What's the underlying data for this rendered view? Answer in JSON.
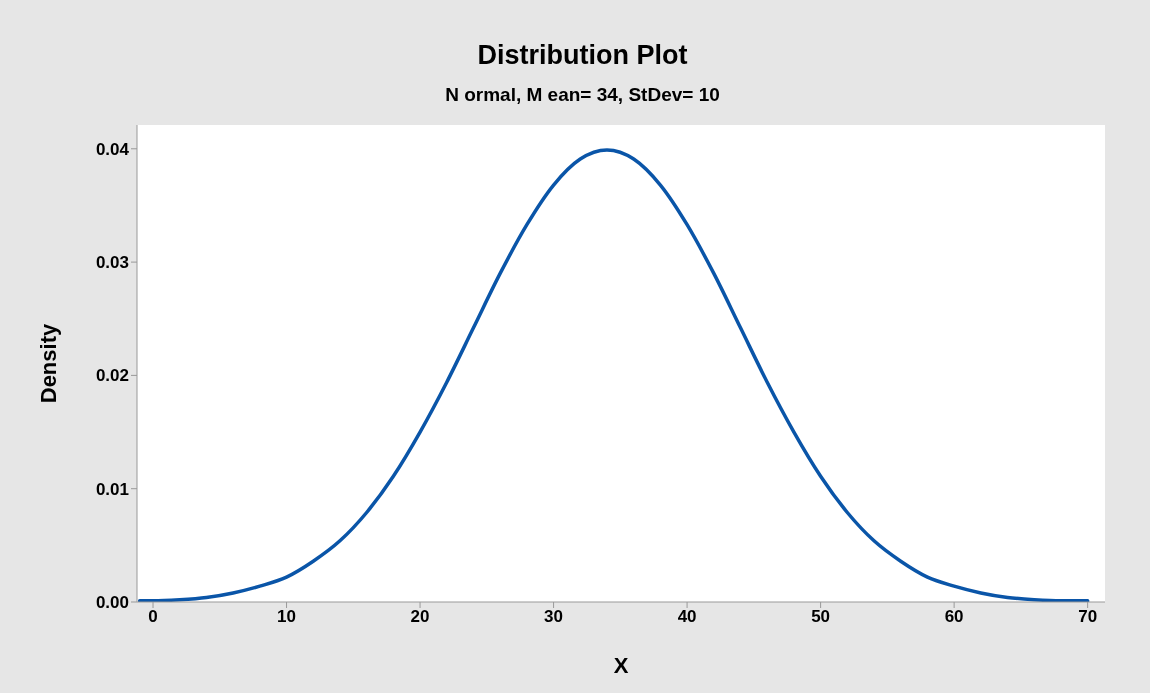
{
  "chart_data": {
    "type": "line",
    "title": "Distribution Plot",
    "subtitle": "N ormal, M ean= 34, StDev= 10",
    "xlabel": "X",
    "ylabel": "Density",
    "x": [
      -1,
      0,
      2,
      4,
      6,
      8,
      10,
      12,
      14,
      16,
      18,
      20,
      22,
      24,
      26,
      28,
      30,
      32,
      34,
      36,
      38,
      40,
      42,
      44,
      46,
      48,
      50,
      52,
      54,
      56,
      58,
      60,
      62,
      64,
      66,
      68,
      70
    ],
    "series": [
      {
        "color": "#0a55a8",
        "values": [
          0.0001,
          0.0001,
          0.0002,
          0.0004,
          0.0008,
          0.0014,
          0.0022,
          0.0036,
          0.0054,
          0.0079,
          0.0111,
          0.015,
          0.0194,
          0.0242,
          0.029,
          0.0333,
          0.0368,
          0.0391,
          0.0399,
          0.0391,
          0.0368,
          0.0333,
          0.029,
          0.0242,
          0.0194,
          0.015,
          0.0111,
          0.0079,
          0.0054,
          0.0036,
          0.0022,
          0.0014,
          0.0008,
          0.0004,
          0.0002,
          0.0001,
          0.0001
        ]
      }
    ],
    "xlim": [
      -1.2,
      71.3
    ],
    "xticks": [
      0,
      10,
      20,
      30,
      40,
      50,
      60,
      70
    ],
    "ylim": [
      0,
      0.0421
    ],
    "yticks": [
      {
        "value": 0,
        "label": "0.00"
      },
      {
        "value": 0.01,
        "label": "0.01"
      },
      {
        "value": 0.02,
        "label": "0.02"
      },
      {
        "value": 0.03,
        "label": "0.03"
      },
      {
        "value": 0.04,
        "label": "0.04"
      }
    ],
    "grid": false,
    "legend": false,
    "marker": "none",
    "line_style": "solid"
  }
}
